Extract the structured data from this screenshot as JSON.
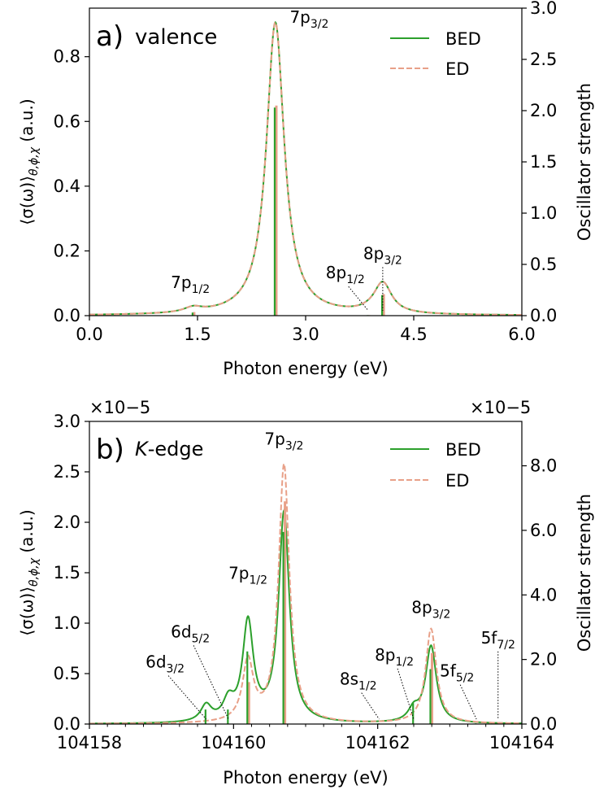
{
  "chart_data": [
    {
      "type": "line",
      "panel_label": "a)",
      "title": "valence",
      "xlabel": "Photon energy (eV)",
      "ylabel": "⟨σ(ω)⟩θ,ϕ,χ (a.u.)",
      "ylabel_right": "Oscillator strength",
      "xlim": [
        0,
        6
      ],
      "ylim": [
        0,
        0.95
      ],
      "ylim_right": [
        0,
        3.0
      ],
      "xticks": [
        0.0,
        1.5,
        3.0,
        4.5,
        6.0
      ],
      "xtick_labels": [
        "0.0",
        "1.5",
        "3.0",
        "4.5",
        "6.0"
      ],
      "yticks": [
        0.0,
        0.2,
        0.4,
        0.6,
        0.8
      ],
      "ytick_labels": [
        "0.0",
        "0.2",
        "0.4",
        "0.6",
        "0.8"
      ],
      "yticks_right": [
        0.0,
        0.5,
        1.0,
        1.5,
        2.0,
        2.5,
        3.0
      ],
      "ytick_labels_right": [
        "0.0",
        "0.5",
        "1.0",
        "1.5",
        "2.0",
        "2.5",
        "3.0"
      ],
      "width": 0.15,
      "legend_position": "top-right",
      "series": [
        {
          "name": "BED",
          "color": "#2ca02c",
          "style": "solid",
          "peaks": [
            {
              "x": 1.44,
              "h": 0.015
            },
            {
              "x": 2.58,
              "h": 0.905
            },
            {
              "x": 3.87,
              "h": 0.003
            },
            {
              "x": 4.07,
              "h": 0.095
            }
          ]
        },
        {
          "name": "ED",
          "color": "#e8a088",
          "style": "dashed",
          "peaks": [
            {
              "x": 1.44,
              "h": 0.015
            },
            {
              "x": 2.58,
              "h": 0.905
            },
            {
              "x": 3.87,
              "h": 0.003
            },
            {
              "x": 4.07,
              "h": 0.095
            }
          ]
        }
      ],
      "sticks": [
        {
          "x": 1.44,
          "f_ed": 0.035,
          "f_bed": 0.03
        },
        {
          "x": 2.58,
          "f_ed": 2.05,
          "f_bed": 2.03
        },
        {
          "x": 3.87,
          "f_ed": 0.005,
          "f_bed": 0.005
        },
        {
          "x": 4.07,
          "f_ed": 0.21,
          "f_bed": 0.2
        }
      ],
      "annotations": [
        {
          "name": "7p",
          "sub": "1/2",
          "x": 1.44,
          "label_x": 1.4,
          "label_y": 0.085,
          "leader": false
        },
        {
          "name": "7p",
          "sub": "3/2",
          "x": 2.58,
          "label_x": 3.05,
          "label_y": 0.905,
          "leader": false
        },
        {
          "name": "8p",
          "sub": "1/2",
          "x": 3.87,
          "label_x": 3.55,
          "label_y": 0.115,
          "leader": true
        },
        {
          "name": "8p",
          "sub": "3/2",
          "x": 4.07,
          "label_x": 4.07,
          "label_y": 0.175,
          "leader": true
        }
      ]
    },
    {
      "type": "line",
      "panel_label": "b)",
      "title_italic": "K",
      "title": "-edge",
      "xlabel": "Photon energy (eV)",
      "ylabel": "⟨σ(ω)⟩θ,ϕ,χ (a.u.)",
      "ylabel_right": "Oscillator strength",
      "scale_label_left": "×10−5",
      "scale_label_right": "×10−5",
      "xlim": [
        104158,
        104164
      ],
      "ylim": [
        0,
        3.0
      ],
      "ylim_right": [
        0,
        9.375
      ],
      "xticks": [
        104158,
        104160,
        104162,
        104164
      ],
      "xtick_labels": [
        "104158",
        "104160",
        "104162",
        "104164"
      ],
      "yticks": [
        0.0,
        0.5,
        1.0,
        1.5,
        2.0,
        2.5,
        3.0
      ],
      "ytick_labels": [
        "0.0",
        "0.5",
        "1.0",
        "1.5",
        "2.0",
        "2.5",
        "3.0"
      ],
      "yticks_right": [
        0.0,
        2.0,
        4.0,
        6.0,
        8.0
      ],
      "ytick_labels_right": [
        "0.0",
        "2.0",
        "4.0",
        "6.0",
        "8.0"
      ],
      "width": 0.09,
      "legend_position": "top-right",
      "series": [
        {
          "name": "BED",
          "color": "#2ca02c",
          "style": "solid",
          "peaks": [
            {
              "x": 104159.62,
              "h": 0.16
            },
            {
              "x": 104159.93,
              "h": 0.19
            },
            {
              "x": 104160.2,
              "h": 0.98
            },
            {
              "x": 104160.7,
              "h": 2.08
            },
            {
              "x": 104162.02,
              "h": 0.0
            },
            {
              "x": 104162.5,
              "h": 0.12
            },
            {
              "x": 104162.74,
              "h": 0.76
            },
            {
              "x": 104163.37,
              "h": 0.0
            },
            {
              "x": 104163.67,
              "h": 0.0
            }
          ]
        },
        {
          "name": "ED",
          "color": "#e8a088",
          "style": "dashed",
          "peaks": [
            {
              "x": 104159.62,
              "h": 0.0
            },
            {
              "x": 104159.93,
              "h": 0.0
            },
            {
              "x": 104160.2,
              "h": 0.6
            },
            {
              "x": 104160.7,
              "h": 2.56
            },
            {
              "x": 104162.02,
              "h": 0.0
            },
            {
              "x": 104162.5,
              "h": 0.0
            },
            {
              "x": 104162.74,
              "h": 0.94
            },
            {
              "x": 104163.37,
              "h": 0.0
            },
            {
              "x": 104163.67,
              "h": 0.0
            }
          ]
        }
      ],
      "sticks": [
        {
          "x": 104159.62,
          "f_ed": 0.0,
          "f_bed": 0.45
        },
        {
          "x": 104159.93,
          "f_ed": 0.0,
          "f_bed": 0.45
        },
        {
          "x": 104160.2,
          "f_ed": 1.3,
          "f_bed": 2.25
        },
        {
          "x": 104160.7,
          "f_ed": 6.9,
          "f_bed": 5.95
        },
        {
          "x": 104162.02,
          "f_ed": 0.0,
          "f_bed": 0.02
        },
        {
          "x": 104162.5,
          "f_ed": 0.0,
          "f_bed": 0.65
        },
        {
          "x": 104162.74,
          "f_ed": 2.2,
          "f_bed": 1.7
        },
        {
          "x": 104163.37,
          "f_ed": 0.0,
          "f_bed": 0.02
        },
        {
          "x": 104163.67,
          "f_ed": 0.0,
          "f_bed": 0.02
        }
      ],
      "annotations": [
        {
          "name": "6d",
          "sub": "3/2",
          "x": 104159.62,
          "label_x": 104159.05,
          "label_y": 0.56,
          "leader": true
        },
        {
          "name": "6d",
          "sub": "5/2",
          "x": 104159.93,
          "label_x": 104159.4,
          "label_y": 0.86,
          "leader": true
        },
        {
          "name": "7p",
          "sub": "1/2",
          "x": 104160.2,
          "label_x": 104160.2,
          "label_y": 1.44,
          "leader": false
        },
        {
          "name": "7p",
          "sub": "3/2",
          "x": 104160.7,
          "label_x": 104160.7,
          "label_y": 2.77,
          "leader": false
        },
        {
          "name": "8s",
          "sub": "1/2",
          "x": 104162.02,
          "label_x": 104161.73,
          "label_y": 0.39,
          "leader": true
        },
        {
          "name": "8p",
          "sub": "1/2",
          "x": 104162.5,
          "label_x": 104162.23,
          "label_y": 0.63,
          "leader": true
        },
        {
          "name": "8p",
          "sub": "3/2",
          "x": 104162.74,
          "label_x": 104162.74,
          "label_y": 1.1,
          "leader": false
        },
        {
          "name": "5f",
          "sub": "5/2",
          "x": 104163.37,
          "label_x": 104163.1,
          "label_y": 0.47,
          "leader": true
        },
        {
          "name": "5f",
          "sub": "7/2",
          "x": 104163.67,
          "label_x": 104163.67,
          "label_y": 0.8,
          "leader": true
        }
      ]
    }
  ]
}
